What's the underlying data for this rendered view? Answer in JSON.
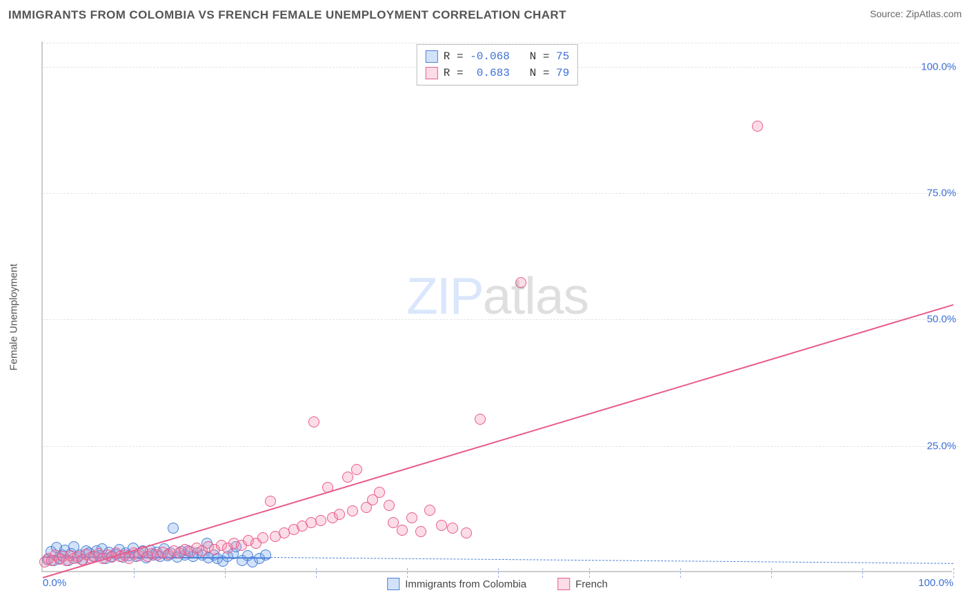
{
  "title": "IMMIGRANTS FROM COLOMBIA VS FRENCH FEMALE UNEMPLOYMENT CORRELATION CHART",
  "source_prefix": "Source: ",
  "source_name": "ZipAtlas.com",
  "watermark_a": "ZIP",
  "watermark_b": "atlas",
  "y_axis_label": "Female Unemployment",
  "chart": {
    "type": "scatter",
    "xlim": [
      0,
      100
    ],
    "ylim": [
      0,
      105
    ],
    "x_ticks": [
      0,
      10,
      20,
      30,
      40,
      50,
      60,
      70,
      80,
      90,
      100
    ],
    "x_tick_labels": {
      "0": "0.0%",
      "100": "100.0%"
    },
    "y_ticks": [
      25,
      50,
      75,
      100
    ],
    "y_tick_labels": {
      "25": "25.0%",
      "50": "50.0%",
      "75": "75.0%",
      "100": "100.0%"
    },
    "y_grid_top": 0,
    "tick_label_color": "#3b6fd6",
    "grid_color": "#e4e4e4",
    "axis_color": "#cccccc",
    "background_color": "#ffffff",
    "marker_radius": 8,
    "marker_border_width": 1.2,
    "marker_fill_opacity": 0.28
  },
  "series": [
    {
      "id": "colombia",
      "label": "Immigrants from Colombia",
      "R": "-0.068",
      "N": "75",
      "color_stroke": "#4a7fd8",
      "color_fill": "rgba(107,159,232,0.30)",
      "regression": {
        "x1": 0,
        "y1": 3.2,
        "x2": 25,
        "y2": 3.0,
        "style": "solid",
        "width": 2
      },
      "regression_ext": {
        "x1": 25,
        "y1": 3.0,
        "x2": 100,
        "y2": 1.8,
        "style": "dashed",
        "width": 1.6
      },
      "points": [
        [
          0.5,
          2.2
        ],
        [
          0.9,
          3.8
        ],
        [
          1.2,
          2.1
        ],
        [
          1.5,
          4.6
        ],
        [
          1.9,
          2.4
        ],
        [
          2.1,
          3.2
        ],
        [
          2.4,
          4.1
        ],
        [
          2.8,
          2.0
        ],
        [
          3.1,
          3.4
        ],
        [
          3.4,
          4.8
        ],
        [
          3.8,
          2.6
        ],
        [
          4.1,
          3.1
        ],
        [
          4.4,
          2.2
        ],
        [
          4.8,
          4.0
        ],
        [
          5.1,
          3.5
        ],
        [
          5.5,
          2.8
        ],
        [
          5.9,
          3.9
        ],
        [
          6.2,
          3.0
        ],
        [
          6.5,
          4.4
        ],
        [
          6.9,
          2.5
        ],
        [
          7.3,
          3.7
        ],
        [
          7.6,
          2.9
        ],
        [
          8.0,
          3.3
        ],
        [
          8.4,
          4.2
        ],
        [
          8.8,
          2.7
        ],
        [
          9.1,
          3.6
        ],
        [
          9.5,
          3.0
        ],
        [
          9.9,
          4.5
        ],
        [
          10.2,
          2.8
        ],
        [
          10.6,
          3.4
        ],
        [
          11.0,
          3.9
        ],
        [
          11.4,
          2.6
        ],
        [
          11.8,
          4.1
        ],
        [
          12.1,
          3.2
        ],
        [
          12.5,
          3.7
        ],
        [
          12.9,
          2.9
        ],
        [
          13.3,
          4.3
        ],
        [
          13.7,
          3.0
        ],
        [
          14.0,
          3.5
        ],
        [
          14.3,
          8.5
        ],
        [
          14.8,
          2.7
        ],
        [
          15.2,
          3.8
        ],
        [
          15.6,
          3.1
        ],
        [
          16.0,
          4.0
        ],
        [
          16.5,
          2.8
        ],
        [
          17.0,
          3.6
        ],
        [
          17.5,
          3.2
        ],
        [
          18.0,
          5.5
        ],
        [
          18.2,
          2.6
        ],
        [
          18.8,
          3.1
        ],
        [
          19.2,
          2.4
        ],
        [
          19.8,
          1.9
        ],
        [
          20.3,
          2.8
        ],
        [
          20.9,
          3.4
        ],
        [
          21.2,
          4.8
        ],
        [
          21.9,
          2.0
        ],
        [
          22.5,
          3.0
        ],
        [
          23.0,
          1.8
        ],
        [
          23.8,
          2.5
        ],
        [
          24.5,
          3.2
        ]
      ]
    },
    {
      "id": "french",
      "label": "French",
      "R": "0.683",
      "N": "79",
      "color_stroke": "#e85b8a",
      "color_fill": "rgba(244,143,177,0.30)",
      "regression": {
        "x1": 0,
        "y1": -1,
        "x2": 100,
        "y2": 53,
        "style": "solid",
        "width": 2
      },
      "points": [
        [
          0.2,
          1.8
        ],
        [
          0.6,
          2.5
        ],
        [
          1.0,
          2.0
        ],
        [
          1.4,
          3.2
        ],
        [
          1.8,
          2.3
        ],
        [
          2.2,
          2.8
        ],
        [
          2.6,
          2.1
        ],
        [
          3.0,
          3.0
        ],
        [
          3.4,
          2.5
        ],
        [
          3.9,
          2.9
        ],
        [
          4.3,
          2.2
        ],
        [
          4.8,
          3.3
        ],
        [
          5.2,
          2.6
        ],
        [
          5.7,
          2.9
        ],
        [
          6.1,
          3.4
        ],
        [
          6.6,
          2.4
        ],
        [
          7.1,
          3.1
        ],
        [
          7.6,
          2.7
        ],
        [
          8.0,
          3.5
        ],
        [
          8.5,
          2.8
        ],
        [
          9.0,
          3.2
        ],
        [
          9.5,
          2.5
        ],
        [
          10.0,
          3.6
        ],
        [
          10.5,
          3.0
        ],
        [
          11.0,
          3.8
        ],
        [
          11.5,
          2.9
        ],
        [
          12.0,
          3.4
        ],
        [
          12.6,
          3.1
        ],
        [
          13.2,
          3.7
        ],
        [
          13.8,
          3.3
        ],
        [
          14.4,
          4.0
        ],
        [
          15.0,
          3.5
        ],
        [
          15.6,
          4.2
        ],
        [
          16.2,
          3.8
        ],
        [
          16.9,
          4.5
        ],
        [
          17.5,
          4.0
        ],
        [
          18.2,
          4.8
        ],
        [
          18.9,
          4.2
        ],
        [
          19.6,
          5.0
        ],
        [
          20.3,
          4.5
        ],
        [
          21.0,
          5.5
        ],
        [
          21.8,
          5.0
        ],
        [
          22.6,
          6.0
        ],
        [
          23.4,
          5.5
        ],
        [
          24.2,
          6.5
        ],
        [
          25.0,
          13.8
        ],
        [
          25.5,
          6.8
        ],
        [
          26.5,
          7.5
        ],
        [
          27.6,
          8.2
        ],
        [
          28.5,
          8.8
        ],
        [
          29.5,
          9.5
        ],
        [
          29.8,
          29.5
        ],
        [
          30.5,
          10.0
        ],
        [
          31.3,
          16.5
        ],
        [
          31.8,
          10.5
        ],
        [
          32.6,
          11.2
        ],
        [
          33.5,
          18.5
        ],
        [
          34.0,
          11.8
        ],
        [
          34.5,
          20.0
        ],
        [
          35.5,
          12.5
        ],
        [
          36.2,
          14.0
        ],
        [
          37.0,
          15.5
        ],
        [
          38.0,
          13.0
        ],
        [
          38.5,
          9.5
        ],
        [
          39.5,
          8.0
        ],
        [
          40.5,
          10.5
        ],
        [
          41.5,
          7.8
        ],
        [
          42.5,
          12.0
        ],
        [
          43.8,
          9.0
        ],
        [
          45.0,
          8.5
        ],
        [
          46.5,
          7.5
        ],
        [
          48.0,
          30.0
        ],
        [
          52.5,
          57.0
        ],
        [
          78.5,
          88.0
        ]
      ]
    }
  ],
  "top_legend_labels": {
    "R_prefix": "R = ",
    "N_prefix": "N = "
  },
  "bottom_legend_order": [
    "colombia",
    "french"
  ]
}
